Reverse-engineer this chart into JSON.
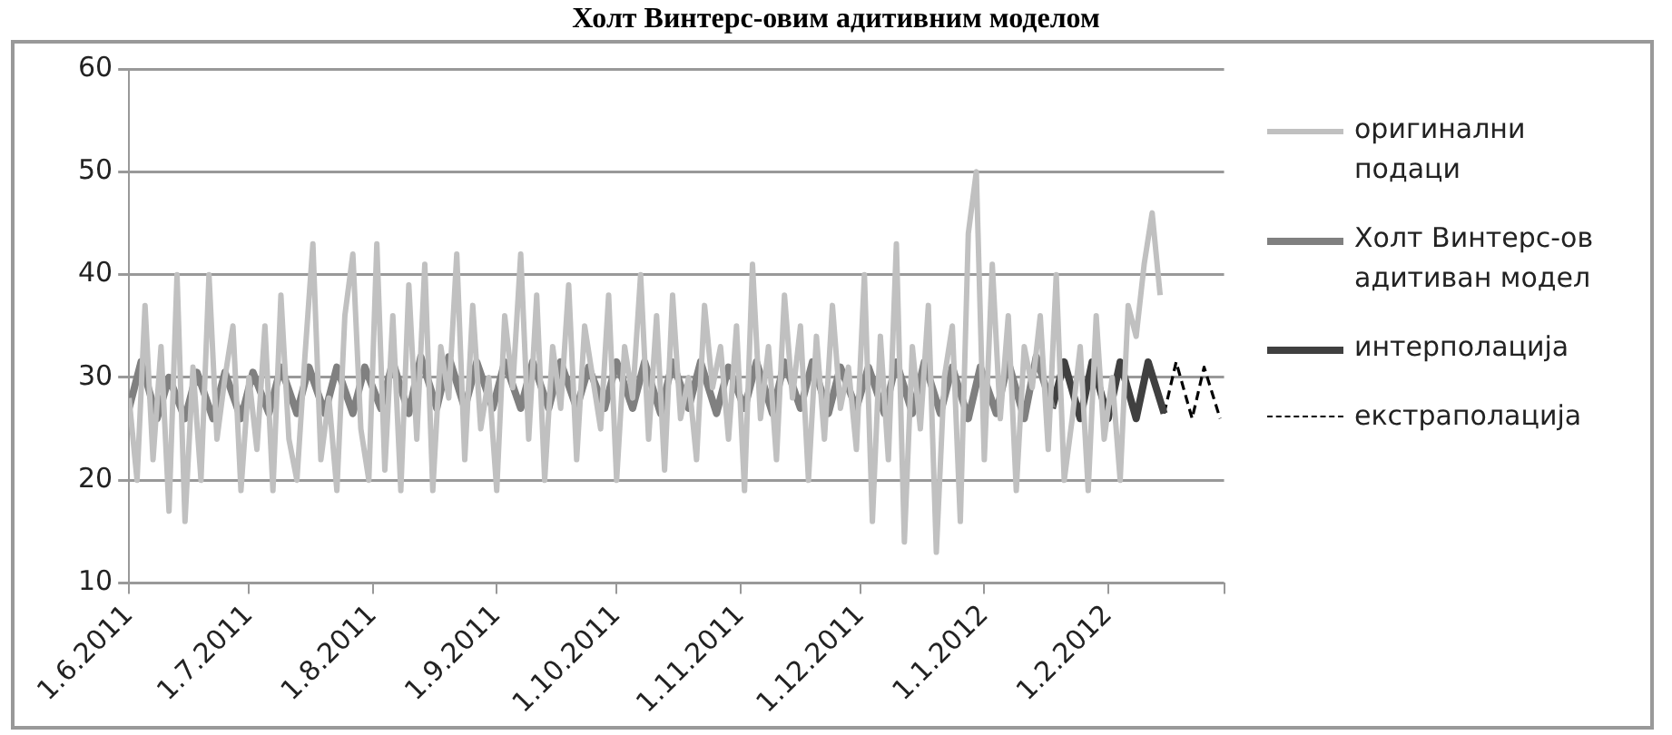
{
  "chart_data": {
    "type": "line",
    "title": "Холт Винтерс-овим адитивним моделом",
    "xlim": [
      "2011-06-01",
      "2012-03-01"
    ],
    "xticks": [
      {
        "value": "2011-06-01",
        "label": "1.6.2011"
      },
      {
        "value": "2011-07-01",
        "label": "1.7.2011"
      },
      {
        "value": "2011-08-01",
        "label": "1.8.2011"
      },
      {
        "value": "2011-09-01",
        "label": "1.9.2011"
      },
      {
        "value": "2011-10-01",
        "label": "1.10.2011"
      },
      {
        "value": "2011-11-01",
        "label": "1.11.2011"
      },
      {
        "value": "2011-12-01",
        "label": "1.12.2011"
      },
      {
        "value": "2012-01-01",
        "label": "1.1.2012"
      },
      {
        "value": "2012-02-01",
        "label": "1.2.2012"
      },
      {
        "value": "2012-03-01",
        "label": null
      }
    ],
    "ylim": [
      10,
      60
    ],
    "yticks": [
      10,
      20,
      30,
      40,
      50,
      60
    ],
    "grid": "y",
    "legend": "right",
    "series": [
      {
        "name": "оригинални подаци",
        "color": "#c0c0c0",
        "x": [
          "2011-06-01",
          "2011-06-03",
          "2011-06-05",
          "2011-06-07",
          "2011-06-09",
          "2011-06-11",
          "2011-06-13",
          "2011-06-15",
          "2011-06-17",
          "2011-06-19",
          "2011-06-21",
          "2011-06-23",
          "2011-06-25",
          "2011-06-27",
          "2011-06-29",
          "2011-07-01",
          "2011-07-03",
          "2011-07-05",
          "2011-07-07",
          "2011-07-09",
          "2011-07-11",
          "2011-07-13",
          "2011-07-15",
          "2011-07-17",
          "2011-07-19",
          "2011-07-21",
          "2011-07-23",
          "2011-07-25",
          "2011-07-27",
          "2011-07-29",
          "2011-07-31",
          "2011-08-02",
          "2011-08-04",
          "2011-08-06",
          "2011-08-08",
          "2011-08-10",
          "2011-08-12",
          "2011-08-14",
          "2011-08-16",
          "2011-08-18",
          "2011-08-20",
          "2011-08-22",
          "2011-08-24",
          "2011-08-26",
          "2011-08-28",
          "2011-08-30",
          "2011-09-01",
          "2011-09-03",
          "2011-09-05",
          "2011-09-07",
          "2011-09-09",
          "2011-09-11",
          "2011-09-13",
          "2011-09-15",
          "2011-09-17",
          "2011-09-19",
          "2011-09-21",
          "2011-09-23",
          "2011-09-25",
          "2011-09-27",
          "2011-09-29",
          "2011-10-01",
          "2011-10-03",
          "2011-10-05",
          "2011-10-07",
          "2011-10-09",
          "2011-10-11",
          "2011-10-13",
          "2011-10-15",
          "2011-10-17",
          "2011-10-19",
          "2011-10-21",
          "2011-10-23",
          "2011-10-25",
          "2011-10-27",
          "2011-10-29",
          "2011-10-31",
          "2011-11-02",
          "2011-11-04",
          "2011-11-06",
          "2011-11-08",
          "2011-11-10",
          "2011-11-12",
          "2011-11-14",
          "2011-11-16",
          "2011-11-18",
          "2011-11-20",
          "2011-11-22",
          "2011-11-24",
          "2011-11-26",
          "2011-11-28",
          "2011-11-30",
          "2011-12-02",
          "2011-12-04",
          "2011-12-06",
          "2011-12-08",
          "2011-12-10",
          "2011-12-12",
          "2011-12-14",
          "2011-12-16",
          "2011-12-18",
          "2011-12-20",
          "2011-12-22",
          "2011-12-24",
          "2011-12-26",
          "2011-12-28",
          "2011-12-30",
          "2012-01-01",
          "2012-01-03",
          "2012-01-05",
          "2012-01-07",
          "2012-01-09",
          "2012-01-11",
          "2012-01-13",
          "2012-01-15",
          "2012-01-17",
          "2012-01-19",
          "2012-01-21",
          "2012-01-23",
          "2012-01-25",
          "2012-01-27",
          "2012-01-29",
          "2012-01-31",
          "2012-02-02",
          "2012-02-04",
          "2012-02-06",
          "2012-02-08",
          "2012-02-10",
          "2012-02-12",
          "2012-02-14"
        ],
        "values": [
          28,
          20,
          37,
          22,
          33,
          17,
          40,
          16,
          31,
          20,
          40,
          24,
          30,
          35,
          19,
          30,
          23,
          35,
          19,
          38,
          24,
          20,
          32,
          43,
          22,
          28,
          19,
          36,
          42,
          25,
          20,
          43,
          21,
          36,
          19,
          39,
          24,
          41,
          19,
          33,
          28,
          42,
          22,
          37,
          25,
          30,
          19,
          36,
          29,
          42,
          24,
          38,
          20,
          33,
          27,
          39,
          22,
          35,
          30,
          25,
          38,
          20,
          33,
          28,
          40,
          24,
          36,
          21,
          38,
          26,
          30,
          22,
          37,
          29,
          33,
          24,
          35,
          19,
          41,
          26,
          33,
          22,
          38,
          28,
          35,
          20,
          34,
          24,
          37,
          27,
          31,
          23,
          40,
          16,
          34,
          22,
          43,
          14,
          33,
          25,
          37,
          13,
          30,
          35,
          16,
          44,
          50,
          22,
          41,
          26,
          36,
          19,
          33,
          29,
          36,
          23,
          40,
          20,
          26,
          33,
          19,
          36,
          24,
          30,
          20,
          37,
          34,
          41,
          46,
          38
        ]
      },
      {
        "name": "Холт Винтерс-ов адитиван модел",
        "color": "#808080",
        "x": [
          "2011-06-01",
          "2011-06-04",
          "2011-06-08",
          "2011-06-11",
          "2011-06-15",
          "2011-06-18",
          "2011-06-22",
          "2011-06-25",
          "2011-06-29",
          "2011-07-02",
          "2011-07-06",
          "2011-07-09",
          "2011-07-13",
          "2011-07-16",
          "2011-07-20",
          "2011-07-23",
          "2011-07-27",
          "2011-07-30",
          "2011-08-03",
          "2011-08-06",
          "2011-08-10",
          "2011-08-13",
          "2011-08-17",
          "2011-08-20",
          "2011-08-24",
          "2011-08-27",
          "2011-08-31",
          "2011-09-03",
          "2011-09-07",
          "2011-09-10",
          "2011-09-14",
          "2011-09-17",
          "2011-09-21",
          "2011-09-24",
          "2011-09-28",
          "2011-10-01",
          "2011-10-05",
          "2011-10-08",
          "2011-10-12",
          "2011-10-15",
          "2011-10-19",
          "2011-10-22",
          "2011-10-26",
          "2011-10-29",
          "2011-11-02",
          "2011-11-05",
          "2011-11-09",
          "2011-11-12",
          "2011-11-16",
          "2011-11-19",
          "2011-11-23",
          "2011-11-26",
          "2011-11-30",
          "2011-12-03",
          "2011-12-07",
          "2011-12-10",
          "2011-12-14",
          "2011-12-17",
          "2011-12-21",
          "2011-12-24",
          "2011-12-28",
          "2011-12-31",
          "2012-01-04",
          "2012-01-07",
          "2012-01-11",
          "2012-01-14",
          "2012-01-18"
        ],
        "values": [
          27,
          31.5,
          26,
          30,
          26,
          30.5,
          26,
          30.5,
          26,
          30.5,
          26.5,
          31,
          26.5,
          31,
          26.5,
          31,
          26.5,
          31,
          27,
          31.5,
          26.5,
          32,
          27,
          32,
          27,
          31.5,
          27,
          31.5,
          27,
          31.5,
          27,
          31.5,
          27,
          31,
          27,
          31.5,
          27,
          31.5,
          26.5,
          31.5,
          27,
          31.5,
          26.5,
          31,
          27,
          31.5,
          26.5,
          31.5,
          27,
          31.5,
          26.5,
          31,
          27,
          31,
          26.5,
          31.5,
          26.5,
          31.5,
          26.5,
          31,
          26,
          31,
          26.5,
          31.5,
          26,
          32,
          27
        ]
      },
      {
        "name": "интерполација",
        "color": "#404040",
        "x": [
          "2012-01-18",
          "2012-01-21",
          "2012-01-25",
          "2012-01-28",
          "2012-02-01",
          "2012-02-04",
          "2012-02-08",
          "2012-02-11",
          "2012-02-15"
        ],
        "values": [
          27,
          31.5,
          26,
          31.5,
          26,
          31.5,
          26,
          31.5,
          26.5
        ]
      },
      {
        "name": "екстраполација",
        "color": "#000000",
        "line_style": "dashed",
        "x": [
          "2012-02-15",
          "2012-02-18",
          "2012-02-22",
          "2012-02-25",
          "2012-02-29"
        ],
        "values": [
          26.5,
          31.5,
          26,
          31,
          26
        ]
      }
    ]
  }
}
